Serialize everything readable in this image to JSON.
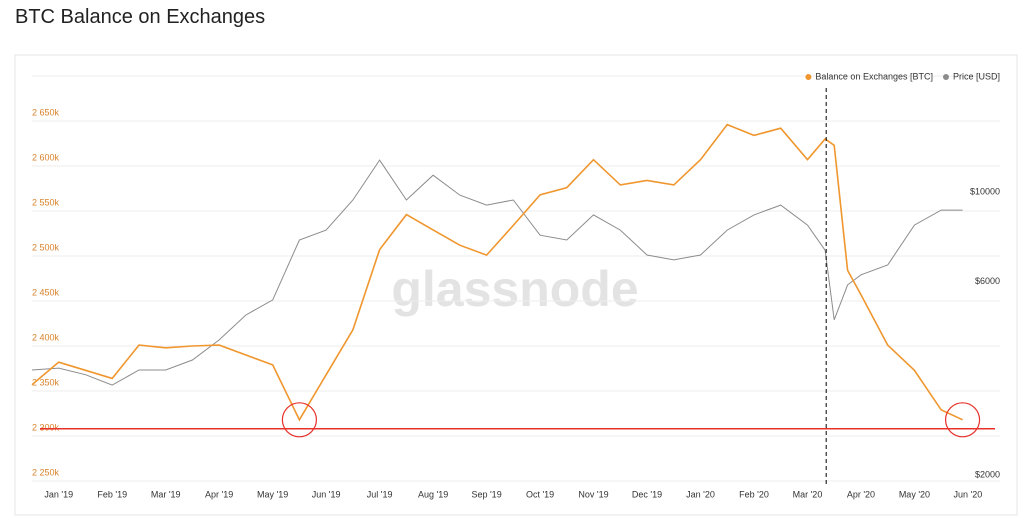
{
  "chart_data": {
    "type": "line",
    "title": "BTC Balance on Exchanges",
    "watermark": "glassnode",
    "x": [
      -0.5,
      0,
      0.5,
      1,
      1.5,
      2,
      2.5,
      3,
      3.5,
      4,
      4.5,
      5,
      5.5,
      6,
      6.5,
      7,
      7.5,
      8,
      8.5,
      9,
      9.5,
      10,
      10.5,
      11,
      11.5,
      12,
      12.5,
      13,
      13.5,
      14,
      14.33,
      14.5,
      14.75,
      15,
      15.5,
      16,
      16.5,
      16.9
    ],
    "series": [
      {
        "name": "Balance on Exchanges [BTC]",
        "color": "#f0962e",
        "axis": "y",
        "values": [
          2357000,
          2382000,
          2373000,
          2364000,
          2401000,
          2398000,
          2400000,
          2401000,
          2390000,
          2379000,
          2318000,
          2368000,
          2418000,
          2507000,
          2546000,
          2529000,
          2512000,
          2501000,
          2534000,
          2568000,
          2576000,
          2607000,
          2579000,
          2584000,
          2579000,
          2607000,
          2646000,
          2634000,
          2642000,
          2607000,
          2630000,
          2623000,
          2484000,
          2457000,
          2401000,
          2373000,
          2329000,
          2318000
        ]
      },
      {
        "name": "Price [USD]",
        "color": "#8c8c8c",
        "axis": "y2",
        "values": [
          3760,
          3800,
          3660,
          3450,
          3760,
          3760,
          3980,
          4460,
          5140,
          5600,
          7870,
          8330,
          9880,
          12400,
          9880,
          11380,
          10160,
          9600,
          9880,
          8090,
          7870,
          9080,
          8330,
          7230,
          7030,
          7230,
          8330,
          9080,
          9600,
          8570,
          7430,
          5000,
          6100,
          6460,
          6830,
          8570,
          9330,
          9330
        ]
      }
    ],
    "xlim": [
      -0.5,
      17.6
    ],
    "xticks": [
      {
        "value": 0,
        "label": "Jan '19"
      },
      {
        "value": 1,
        "label": "Feb '19"
      },
      {
        "value": 2,
        "label": "Mar '19"
      },
      {
        "value": 3,
        "label": "Apr '19"
      },
      {
        "value": 4,
        "label": "May '19"
      },
      {
        "value": 5,
        "label": "Jun '19"
      },
      {
        "value": 6,
        "label": "Jul '19"
      },
      {
        "value": 7,
        "label": "Aug '19"
      },
      {
        "value": 8,
        "label": "Sep '19"
      },
      {
        "value": 9,
        "label": "Oct '19"
      },
      {
        "value": 10,
        "label": "Nov '19"
      },
      {
        "value": 11,
        "label": "Dec '19"
      },
      {
        "value": 12,
        "label": "Jan '20"
      },
      {
        "value": 13,
        "label": "Feb '20"
      },
      {
        "value": 14,
        "label": "Mar '20"
      },
      {
        "value": 15,
        "label": "Apr '20"
      },
      {
        "value": 16,
        "label": "May '20"
      },
      {
        "value": 17,
        "label": "Jun '20"
      }
    ],
    "ylim": [
      2250000,
      2700000
    ],
    "yticks": [
      {
        "value": 2250000,
        "label": "2 250k"
      },
      {
        "value": 2300000,
        "label": "2 300k"
      },
      {
        "value": 2350000,
        "label": "2 350k"
      },
      {
        "value": 2400000,
        "label": "2 400k"
      },
      {
        "value": 2450000,
        "label": "2 450k"
      },
      {
        "value": 2500000,
        "label": "2 500k"
      },
      {
        "value": 2550000,
        "label": "2 550k"
      },
      {
        "value": 2600000,
        "label": "2 600k"
      },
      {
        "value": 2650000,
        "label": "2 650k"
      }
    ],
    "y2lim": [
      2000,
      20000
    ],
    "y2scale": "log",
    "y2ticks": [
      {
        "value": 2000,
        "label": "$2000"
      },
      {
        "value": 6000,
        "label": "$6000"
      },
      {
        "value": 10000,
        "label": "$10000"
      }
    ],
    "grid": true,
    "legend": "top-right",
    "reference_line": {
      "y": 2308000,
      "color": "#e8312a"
    },
    "marker_x": 14.35,
    "highlights": [
      {
        "x": 4.5,
        "y": 2318000
      },
      {
        "x": 16.9,
        "y": 2318000
      }
    ]
  }
}
